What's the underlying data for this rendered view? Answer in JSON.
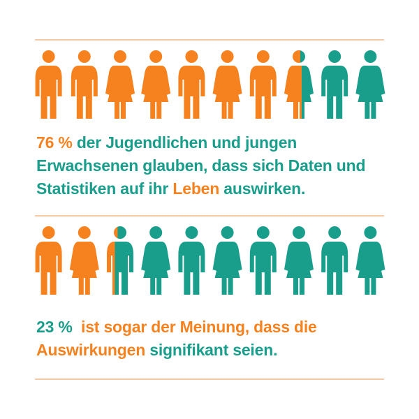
{
  "colors": {
    "orange": "#F5821F",
    "teal": "#1A9E8C",
    "rule": "#F7C9A3"
  },
  "icon_names": {
    "male": "person-male-icon",
    "female": "person-female-icon"
  },
  "infographic_1": {
    "icons": [
      "male",
      "male",
      "female",
      "female",
      "male",
      "female",
      "male",
      "female",
      "male",
      "female"
    ],
    "orange_fraction": 0.76,
    "statement": [
      {
        "text": "76 %",
        "color": "orange"
      },
      {
        "text": " der Jugendlichen und jungen Erwachsenen glauben, dass sich Daten und Statistiken auf ihr ",
        "color": "teal"
      },
      {
        "text": "Leben",
        "color": "orange"
      },
      {
        "text": " auswirken.",
        "color": "teal"
      }
    ]
  },
  "infographic_2": {
    "icons": [
      "male",
      "female",
      "male",
      "female",
      "male",
      "female",
      "male",
      "female",
      "male",
      "female"
    ],
    "orange_fraction": 0.23,
    "statement": [
      {
        "text": "23 % ",
        "color": "teal"
      },
      {
        "text": " ist sogar der Meinung, dass die ",
        "color": "orange"
      },
      {
        "text": "Auswirkungen",
        "color": "orange"
      },
      {
        "text": " signifikant seien.",
        "color": "teal"
      }
    ]
  }
}
